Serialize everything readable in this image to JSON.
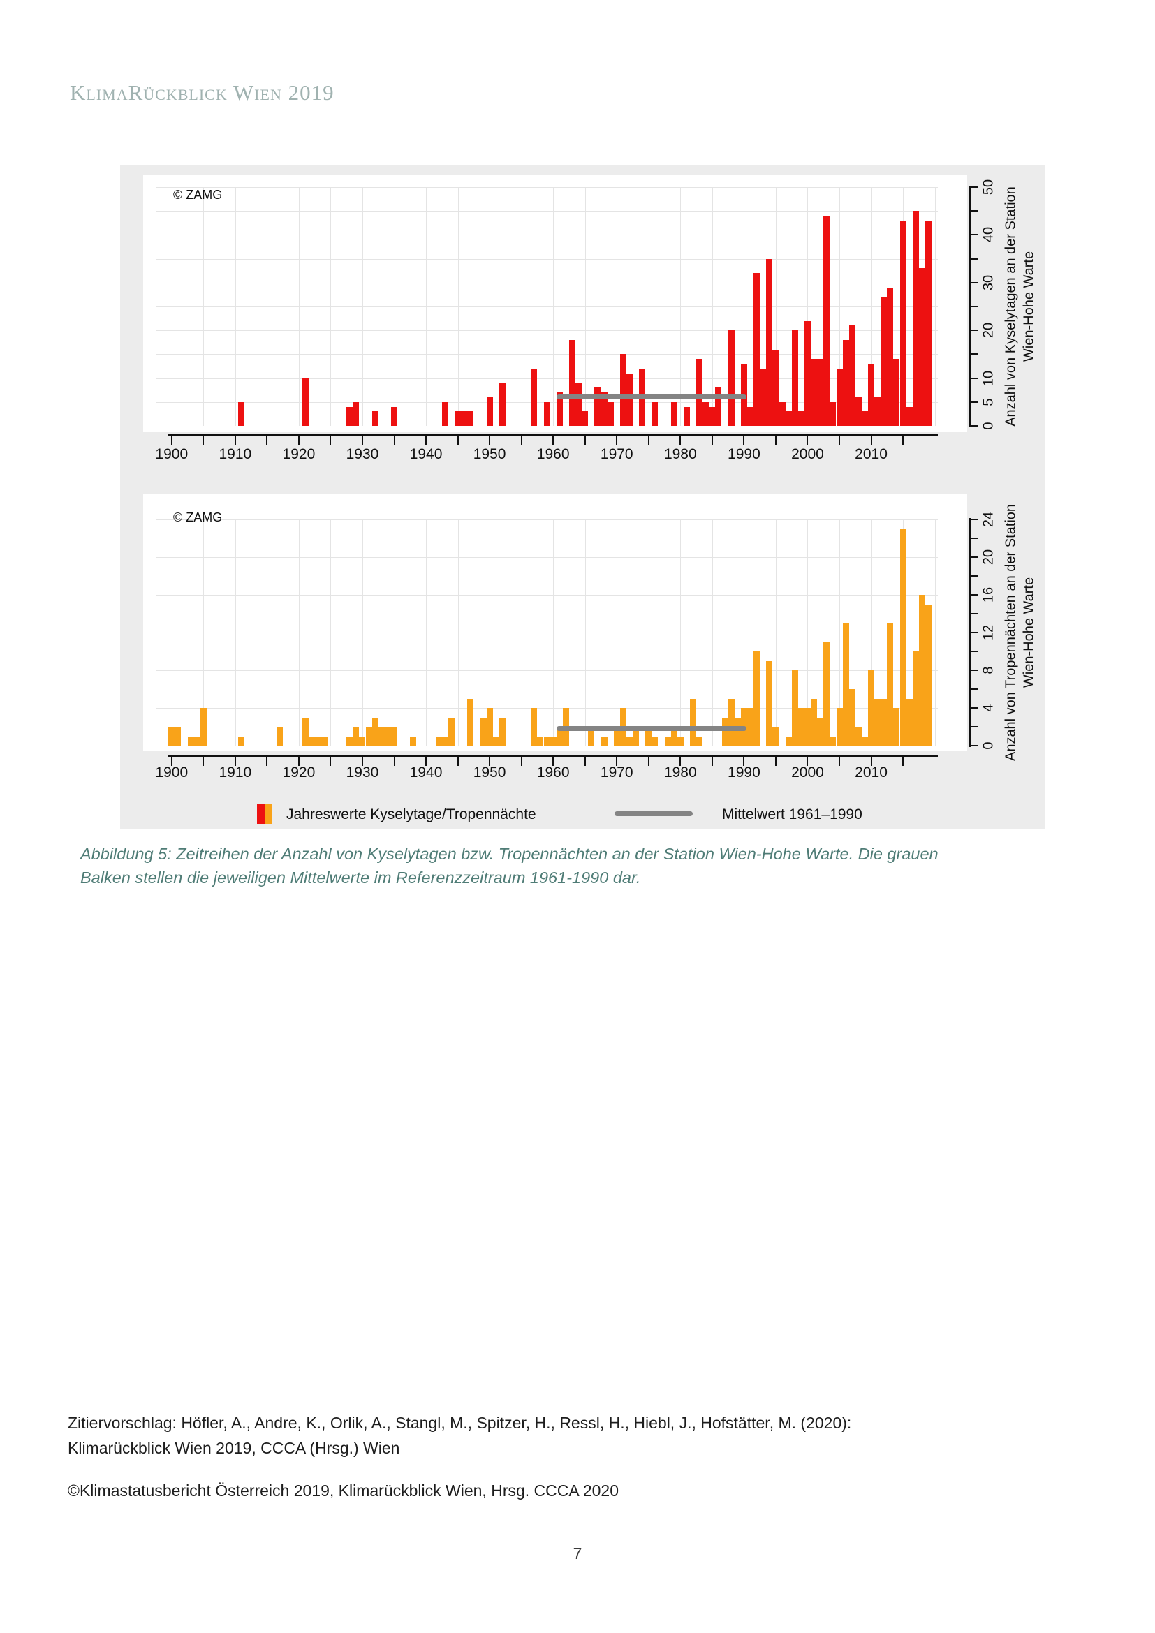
{
  "page": {
    "header": "KlimaRückblick Wien 2019",
    "citation_line1": "Zitiervorschlag: Höfler, A., Andre, K., Orlik, A., Stangl, M., Spitzer, H., Ressl, H., Hiebl, J., Hofstätter, M. (2020):",
    "citation_line2": "Klimarückblick Wien 2019, CCCA (Hrsg.) Wien",
    "copyright_line": "©Klimastatusbericht Österreich 2019, Klimarückblick Wien, Hrsg. CCCA 2020",
    "page_number": "7"
  },
  "figure": {
    "caption_line1": "Abbildung 5: Zeitreihen der Anzahl von Kyselytagen bzw. Tropennächten an der Station Wien-Hohe Warte. Die grauen",
    "caption_line2": "Balken stellen die jeweiligen Mittelwerte im Referenzzeitraum 1961-1990 dar.",
    "legend": {
      "bars_label": "Jahreswerte Kyselytage/Tropennächte",
      "mean_label": "Mittelwert 1961–1990"
    },
    "colors": {
      "bar_red": "#ed1111",
      "bar_orange": "#f9a319",
      "mean_grey": "#848484"
    }
  },
  "chart_data": [
    {
      "type": "bar",
      "watermark": "© ZAMG",
      "ylabel_line1": "Anzahl von Kyselytagen an der Station",
      "ylabel_line2": "Wien-Hohe Warte",
      "bar_color": "#ed1111",
      "mean_color": "#848484",
      "x_start": 1900,
      "x_end": 2019,
      "xticks_labeled": [
        1900,
        1910,
        1920,
        1930,
        1940,
        1950,
        1960,
        1970,
        1980,
        1990,
        2000,
        2010
      ],
      "xtick_step": 5,
      "ylim": [
        0,
        50
      ],
      "ytick_step": 5,
      "yticks_labeled": [
        0,
        5,
        10,
        20,
        30,
        40,
        50
      ],
      "grid_step": 5,
      "mean": {
        "value": 6,
        "start_year": 1961,
        "end_year": 1990
      },
      "values": [
        0,
        0,
        0,
        0,
        0,
        0,
        0,
        0,
        0,
        0,
        0,
        5,
        0,
        0,
        0,
        0,
        0,
        0,
        0,
        0,
        0,
        10,
        0,
        0,
        0,
        0,
        0,
        0,
        4,
        5,
        0,
        0,
        3,
        0,
        0,
        4,
        0,
        0,
        0,
        0,
        0,
        0,
        0,
        5,
        0,
        3,
        3,
        3,
        0,
        0,
        6,
        0,
        9,
        0,
        0,
        0,
        0,
        12,
        0,
        5,
        0,
        7,
        0,
        18,
        9,
        3,
        0,
        8,
        7,
        5,
        0,
        15,
        11,
        0,
        12,
        0,
        5,
        0,
        0,
        5,
        0,
        4,
        0,
        14,
        5,
        4,
        8,
        0,
        20,
        0,
        13,
        4,
        32,
        12,
        35,
        16,
        5,
        3,
        20,
        3,
        22,
        14,
        14,
        44,
        5,
        12,
        18,
        21,
        6,
        3,
        13,
        6,
        27,
        29,
        14,
        43,
        4,
        45,
        33,
        43
      ]
    },
    {
      "type": "bar",
      "watermark": "© ZAMG",
      "ylabel_line1": "Anzahl von Tropennächten an der Station",
      "ylabel_line2": "Wien-Hohe Warte",
      "bar_color": "#f9a319",
      "mean_color": "#848484",
      "x_start": 1900,
      "x_end": 2019,
      "xticks_labeled": [
        1900,
        1910,
        1920,
        1930,
        1940,
        1950,
        1960,
        1970,
        1980,
        1990,
        2000,
        2010
      ],
      "xtick_step": 5,
      "ylim": [
        0,
        24
      ],
      "ytick_step": 2,
      "yticks_labeled": [
        0,
        4,
        8,
        12,
        16,
        20,
        24
      ],
      "grid_step": 4,
      "mean": {
        "value": 1.8,
        "start_year": 1961,
        "end_year": 1990
      },
      "values": [
        2,
        2,
        0,
        1,
        1,
        4,
        0,
        0,
        0,
        0,
        0,
        1,
        0,
        0,
        0,
        0,
        0,
        2,
        0,
        0,
        0,
        3,
        1,
        1,
        1,
        0,
        0,
        0,
        1,
        2,
        1,
        2,
        3,
        2,
        2,
        2,
        0,
        0,
        1,
        0,
        0,
        0,
        1,
        1,
        3,
        0,
        0,
        5,
        0,
        3,
        4,
        1,
        3,
        0,
        0,
        0,
        0,
        4,
        1,
        1,
        1,
        2,
        4,
        0,
        0,
        0,
        2,
        0,
        1,
        0,
        2,
        4,
        1,
        2,
        0,
        2,
        1,
        0,
        1,
        2,
        1,
        0,
        5,
        1,
        0,
        0,
        0,
        3,
        5,
        3,
        4,
        4,
        10,
        0,
        9,
        2,
        0,
        1,
        8,
        4,
        4,
        5,
        3,
        11,
        1,
        4,
        13,
        6,
        2,
        1,
        8,
        5,
        5,
        13,
        4,
        23,
        5,
        10,
        16,
        15
      ]
    }
  ]
}
